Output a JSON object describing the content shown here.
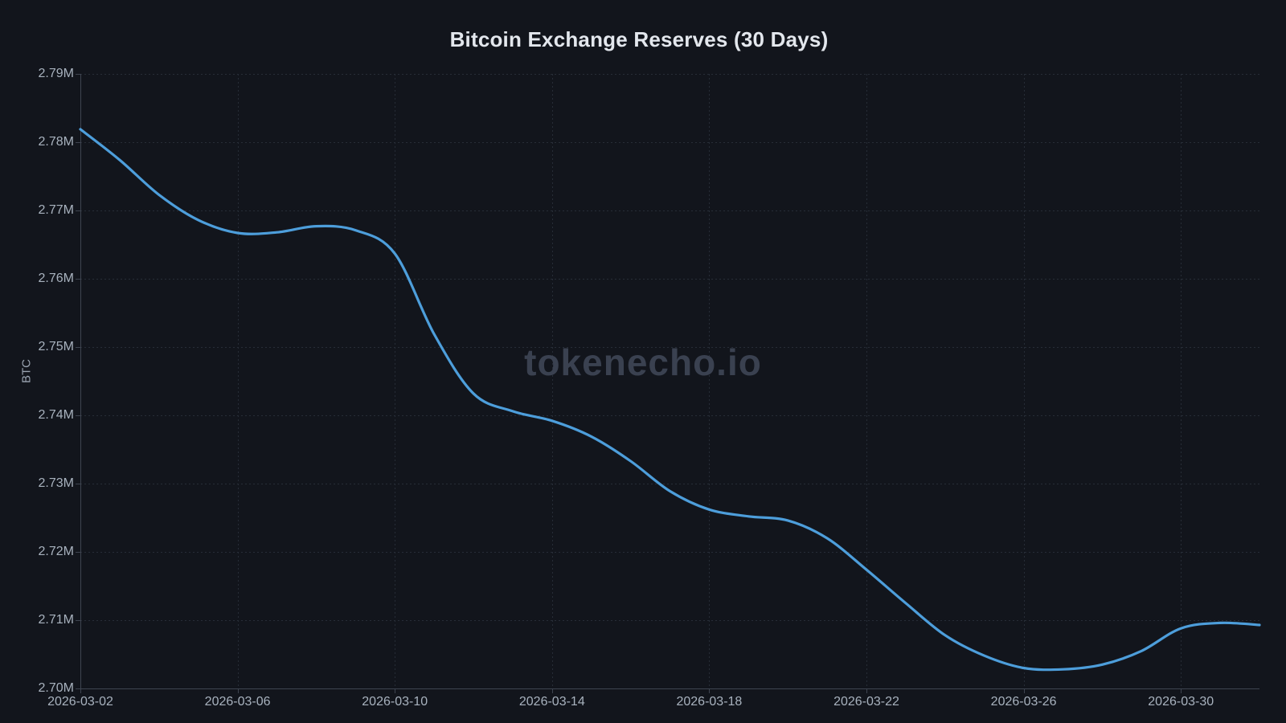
{
  "chart_data": {
    "type": "line",
    "title": "Bitcoin Exchange Reserves (30 Days)",
    "xlabel": "",
    "ylabel": "BTC",
    "unit_suffix": "M",
    "grid": true,
    "legend_position": "none",
    "smooth": true,
    "ylim": [
      2.7,
      2.79
    ],
    "y_tick_values": [
      2.7,
      2.71,
      2.72,
      2.73,
      2.74,
      2.75,
      2.76,
      2.77,
      2.78,
      2.79
    ],
    "y_tick_labels": [
      "2.70M",
      "2.71M",
      "2.72M",
      "2.73M",
      "2.74M",
      "2.75M",
      "2.76M",
      "2.77M",
      "2.78M",
      "2.79M"
    ],
    "x_tick_indices": [
      0,
      4,
      8,
      12,
      16,
      20,
      24,
      28
    ],
    "x_tick_labels": [
      "2026-03-02",
      "2026-03-06",
      "2026-03-10",
      "2026-03-14",
      "2026-03-18",
      "2026-03-22",
      "2026-03-26",
      "2026-03-30"
    ],
    "dates": [
      "2026-03-02",
      "2026-03-03",
      "2026-03-04",
      "2026-03-05",
      "2026-03-06",
      "2026-03-07",
      "2026-03-08",
      "2026-03-09",
      "2026-03-10",
      "2026-03-11",
      "2026-03-12",
      "2026-03-13",
      "2026-03-14",
      "2026-03-15",
      "2026-03-16",
      "2026-03-17",
      "2026-03-18",
      "2026-03-19",
      "2026-03-20",
      "2026-03-21",
      "2026-03-22",
      "2026-03-23",
      "2026-03-24",
      "2026-03-25",
      "2026-03-26",
      "2026-03-27",
      "2026-03-28",
      "2026-03-29",
      "2026-03-30",
      "2026-03-31",
      "2026-04-01"
    ],
    "values_millions_btc": [
      2.7819,
      2.7774,
      2.7723,
      2.7686,
      2.7667,
      2.7668,
      2.7677,
      2.7671,
      2.7637,
      2.7519,
      2.7432,
      2.7406,
      2.7392,
      2.7369,
      2.7333,
      2.7289,
      2.7262,
      2.7252,
      2.7246,
      2.722,
      2.7174,
      2.7125,
      2.7078,
      2.7048,
      2.703,
      2.7028,
      2.7035,
      2.7055,
      2.7088,
      2.7096,
      2.7093
    ]
  },
  "watermark": {
    "text": "tokenecho.io"
  },
  "colors": {
    "background": "#12151c",
    "line": "#4d9edb",
    "grid": "#272d37",
    "axis": "#3e4450",
    "tick_text": "#a8b2be",
    "title_text": "#e3e7ed",
    "watermark_text": "#3a4150"
  }
}
